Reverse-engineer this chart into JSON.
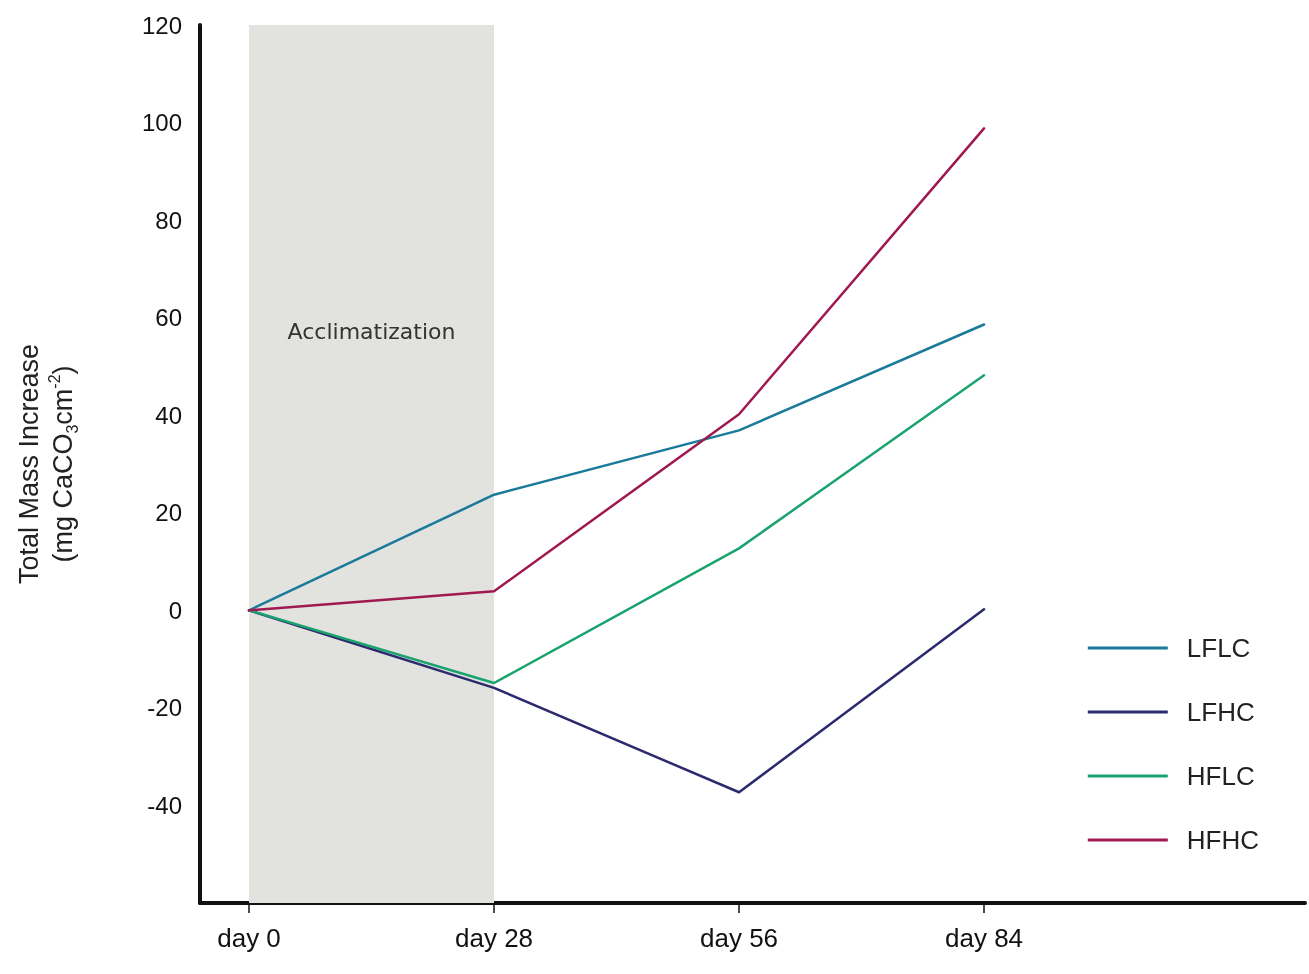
{
  "chart_data": {
    "type": "line",
    "ylabel": "Total Mass Increase\n(mg CaCO$_{3}$cm$^{-2}$)",
    "categories": [
      "day 0",
      "day 28",
      "day 56",
      "day 84"
    ],
    "ylim": [
      -60,
      120
    ],
    "yticks": [
      -40,
      -20,
      0,
      20,
      40,
      60,
      80,
      100,
      120
    ],
    "series": [
      {
        "name": "LFLC",
        "color": "#1a7a9a",
        "values": [
          0,
          23.7,
          36.9,
          58.6
        ]
      },
      {
        "name": "LFHC",
        "color": "#2b2a6e",
        "values": [
          0,
          -15.9,
          -37.3,
          0.2
        ]
      },
      {
        "name": "HFLC",
        "color": "#1aa36e",
        "values": [
          0,
          -14.9,
          12.7,
          48.2
        ]
      },
      {
        "name": "HFHC",
        "color": "#a01850",
        "values": [
          0,
          3.9,
          40.2,
          98.8
        ]
      }
    ],
    "bands": [
      {
        "axis": "x",
        "from": "day 0",
        "to": "day 28",
        "label": "Acclimatization",
        "color": "#e2e2de"
      }
    ],
    "grid": false,
    "legend": "right",
    "marker": "none",
    "line_style": "solid"
  }
}
